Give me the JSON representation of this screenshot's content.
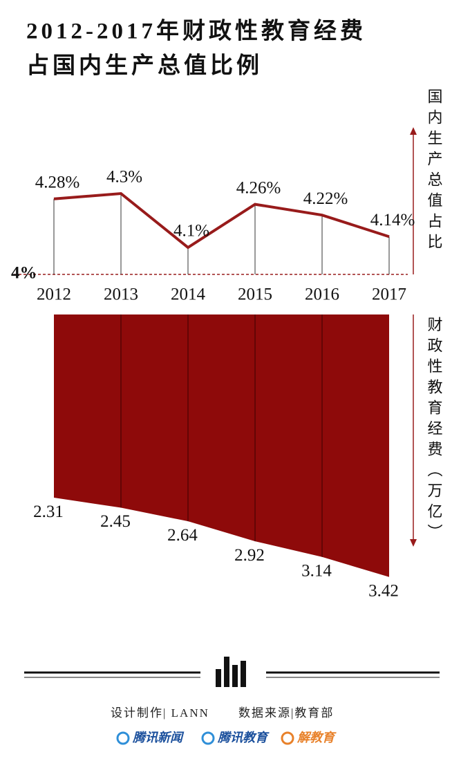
{
  "title": [
    "2012-2017年财政性教育经费",
    "占国内生产总值比例"
  ],
  "chart_data": [
    {
      "type": "line",
      "categories": [
        "2012",
        "2013",
        "2014",
        "2015",
        "2016",
        "2017"
      ],
      "values": [
        4.28,
        4.3,
        4.1,
        4.26,
        4.22,
        4.14
      ],
      "value_labels": [
        "4.28%",
        "4.3%",
        "4.1%",
        "4.26%",
        "4.22%",
        "4.14%"
      ],
      "ylim": [
        4,
        4.3
      ],
      "yticks": [
        {
          "value": 4,
          "label": "4%"
        }
      ],
      "y_label": "国内生产总值占比",
      "color": "#981b1b"
    },
    {
      "type": "area",
      "values": [
        2.31,
        2.45,
        2.64,
        2.92,
        3.14,
        3.42
      ],
      "ylim": [
        2,
        3.5
      ],
      "y_label": "财政性教育经费（万亿）",
      "color": "#8e0a0a"
    }
  ],
  "footer": {
    "credit": "设计制作| LANN",
    "source": "数据来源|教育部",
    "logos": [
      "腾讯新闻",
      "腾讯教育",
      "解教育"
    ]
  }
}
